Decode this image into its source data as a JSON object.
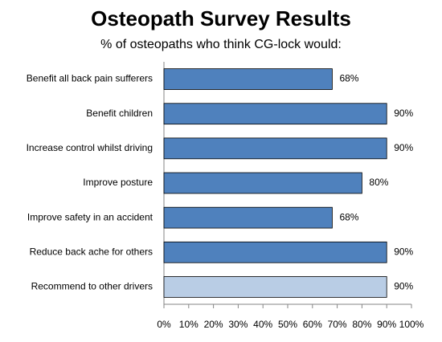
{
  "chart_data": {
    "type": "bar",
    "orientation": "horizontal",
    "title": "Osteopath Survey Results",
    "subtitle": "% of osteopaths who think CG-lock would:",
    "categories": [
      "Benefit all back pain sufferers",
      "Benefit children",
      "Increase control whilst driving",
      "Improve posture",
      "Improve safety in an accident",
      "Reduce back ache for others",
      "Recommend to other drivers"
    ],
    "values": [
      68,
      90,
      90,
      80,
      68,
      90,
      90
    ],
    "value_labels": [
      "68%",
      "90%",
      "90%",
      "80%",
      "68%",
      "90%",
      "90%"
    ],
    "colors": [
      "#4f81bd",
      "#4f81bd",
      "#4f81bd",
      "#4f81bd",
      "#4f81bd",
      "#4f81bd",
      "#b9cde5"
    ],
    "xlim": [
      0,
      100
    ],
    "xticks": [
      {
        "value": 0,
        "label": "0%"
      },
      {
        "value": 10,
        "label": "10%"
      },
      {
        "value": 20,
        "label": "20%"
      },
      {
        "value": 30,
        "label": "30%"
      },
      {
        "value": 40,
        "label": "40%"
      },
      {
        "value": 50,
        "label": "50%"
      },
      {
        "value": 60,
        "label": "60%"
      },
      {
        "value": 70,
        "label": "70%"
      },
      {
        "value": 80,
        "label": "80%"
      },
      {
        "value": 90,
        "label": "90%"
      },
      {
        "value": 100,
        "label": "100%"
      }
    ],
    "grid": false
  }
}
